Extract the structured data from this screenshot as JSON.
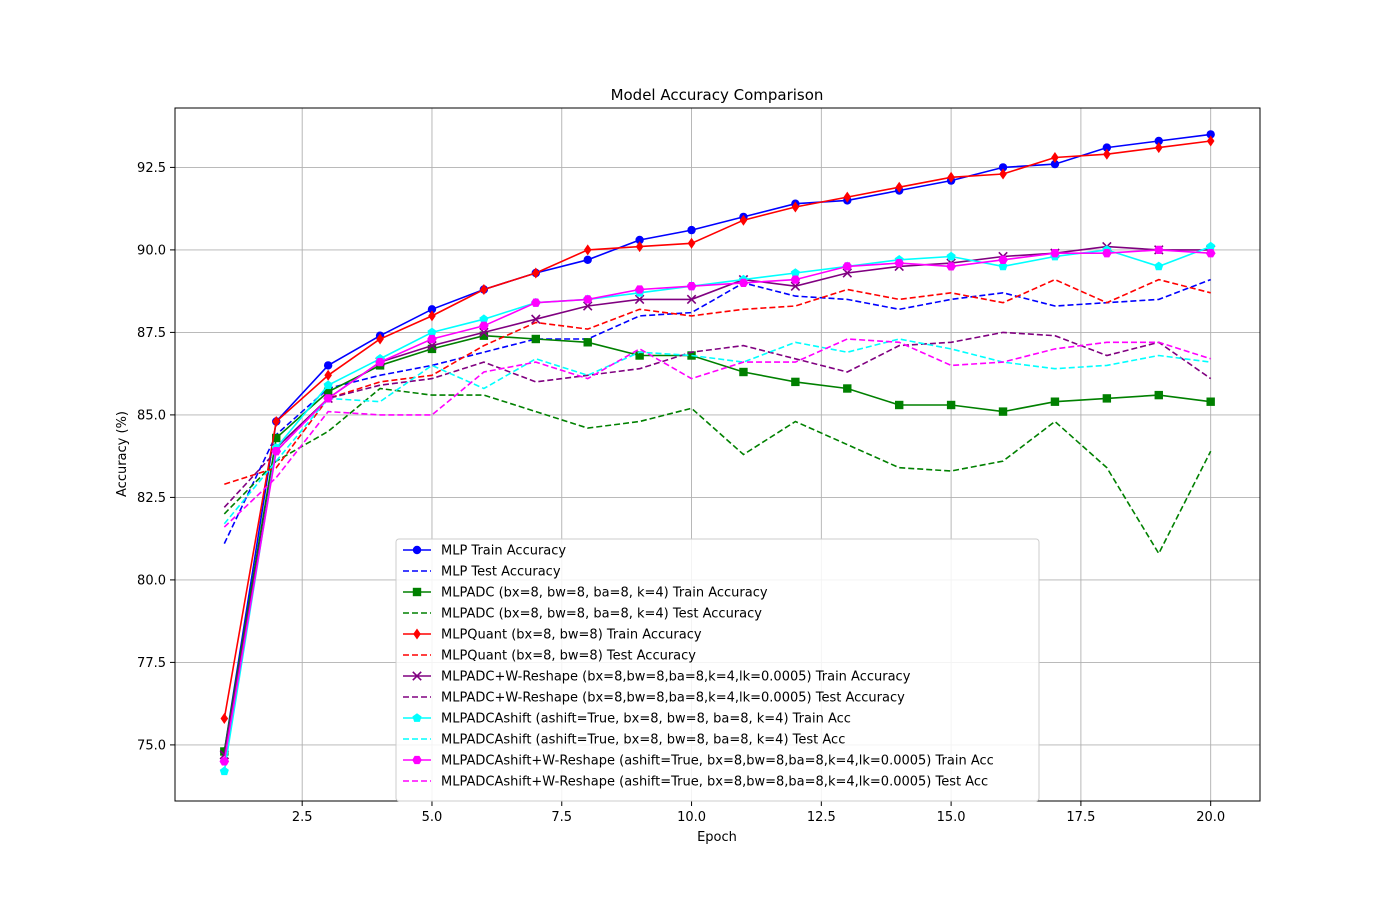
{
  "chart_data": {
    "type": "line",
    "title": "Model Accuracy Comparison",
    "xlabel": "Epoch",
    "ylabel": "Accuracy (%)",
    "xlim": [
      0.05,
      20.95
    ],
    "ylim": [
      73.3,
      94.3
    ],
    "x_ticks": [
      2.5,
      5.0,
      7.5,
      10.0,
      12.5,
      15.0,
      17.5,
      20.0
    ],
    "x_tick_labels": [
      "2.5",
      "5.0",
      "7.5",
      "10.0",
      "12.5",
      "15.0",
      "17.5",
      "20.0"
    ],
    "y_ticks": [
      75.0,
      77.5,
      80.0,
      82.5,
      85.0,
      87.5,
      90.0,
      92.5
    ],
    "y_tick_labels": [
      "75.0",
      "77.5",
      "80.0",
      "82.5",
      "85.0",
      "87.5",
      "90.0",
      "92.5"
    ],
    "grid": true,
    "legend_position": "lower-center",
    "x": [
      1,
      2,
      3,
      4,
      5,
      6,
      7,
      8,
      9,
      10,
      11,
      12,
      13,
      14,
      15,
      16,
      17,
      18,
      19,
      20
    ],
    "series": [
      {
        "name": "MLP Train Accuracy",
        "color": "#0000ff",
        "style": "solid",
        "marker": "circle",
        "values": [
          74.8,
          84.8,
          86.5,
          87.4,
          88.2,
          88.8,
          89.3,
          89.7,
          90.3,
          90.6,
          91.0,
          91.4,
          91.5,
          91.8,
          92.1,
          92.5,
          92.6,
          93.1,
          93.3,
          93.5
        ]
      },
      {
        "name": "MLP Test Accuracy",
        "color": "#0000ff",
        "style": "dashed",
        "marker": "none",
        "values": [
          81.1,
          84.4,
          85.8,
          86.2,
          86.5,
          86.9,
          87.3,
          87.3,
          88.0,
          88.1,
          89.0,
          88.6,
          88.5,
          88.2,
          88.5,
          88.7,
          88.3,
          88.4,
          88.5,
          89.1
        ]
      },
      {
        "name": "MLPADC (bx=8, bw=8, ba=8, k=4) Train Accuracy",
        "color": "#008000",
        "style": "solid",
        "marker": "square",
        "values": [
          74.8,
          84.3,
          85.7,
          86.5,
          87.0,
          87.4,
          87.3,
          87.2,
          86.8,
          86.8,
          86.3,
          86.0,
          85.8,
          85.3,
          85.3,
          85.1,
          85.4,
          85.5,
          85.6,
          85.4
        ]
      },
      {
        "name": "MLPADC (bx=8, bw=8, ba=8, k=4) Test Accuracy",
        "color": "#008000",
        "style": "dashed",
        "marker": "none",
        "values": [
          82.0,
          83.6,
          84.5,
          85.8,
          85.6,
          85.6,
          85.1,
          84.6,
          84.8,
          85.2,
          83.8,
          84.8,
          84.1,
          83.4,
          83.3,
          83.6,
          84.8,
          83.4,
          80.8,
          83.9
        ]
      },
      {
        "name": "MLPQuant (bx=8, bw=8) Train Accuracy",
        "color": "#ff0000",
        "style": "solid",
        "marker": "diamond",
        "values": [
          75.8,
          84.8,
          86.2,
          87.3,
          88.0,
          88.8,
          89.3,
          90.0,
          90.1,
          90.2,
          90.9,
          91.3,
          91.6,
          91.9,
          92.2,
          92.3,
          92.8,
          92.9,
          93.1,
          93.3
        ]
      },
      {
        "name": "MLPQuant (bx=8, bw=8) Test Accuracy",
        "color": "#ff0000",
        "style": "dashed",
        "marker": "none",
        "values": [
          82.9,
          83.4,
          85.5,
          86.0,
          86.2,
          87.1,
          87.8,
          87.6,
          88.2,
          88.0,
          88.2,
          88.3,
          88.8,
          88.5,
          88.7,
          88.4,
          89.1,
          88.4,
          89.1,
          88.7
        ]
      },
      {
        "name": "MLPADC+W-Reshape (bx=8,bw=8,ba=8,k=4,lk=0.0005) Train Accuracy",
        "color": "#800080",
        "style": "solid",
        "marker": "x",
        "values": [
          74.7,
          84.0,
          85.5,
          86.6,
          87.1,
          87.5,
          87.9,
          88.3,
          88.5,
          88.5,
          89.1,
          88.9,
          89.3,
          89.5,
          89.6,
          89.8,
          89.9,
          90.1,
          90.0,
          90.0
        ]
      },
      {
        "name": "MLPADC+W-Reshape (bx=8,bw=8,ba=8,k=4,lk=0.0005) Test Accuracy",
        "color": "#800080",
        "style": "dashed",
        "marker": "none",
        "values": [
          82.2,
          83.9,
          85.5,
          85.9,
          86.1,
          86.6,
          86.0,
          86.2,
          86.4,
          86.9,
          87.1,
          86.7,
          86.3,
          87.1,
          87.2,
          87.5,
          87.4,
          86.8,
          87.2,
          86.1
        ]
      },
      {
        "name": "MLPADCAshift (ashift=True, bx=8, bw=8, ba=8, k=4) Train Acc",
        "color": "#00ffff",
        "style": "solid",
        "marker": "pentagon",
        "values": [
          74.2,
          84.0,
          85.9,
          86.7,
          87.5,
          87.9,
          88.4,
          88.5,
          88.7,
          88.9,
          89.1,
          89.3,
          89.5,
          89.7,
          89.8,
          89.5,
          89.8,
          90.0,
          89.5,
          90.1
        ]
      },
      {
        "name": "MLPADCAshift (ashift=True, bx=8, bw=8, ba=8, k=4) Test Acc",
        "color": "#00ffff",
        "style": "dashed",
        "marker": "none",
        "values": [
          81.7,
          83.6,
          85.5,
          85.4,
          86.5,
          85.8,
          86.7,
          86.2,
          86.9,
          86.8,
          86.6,
          87.2,
          86.9,
          87.3,
          87.0,
          86.6,
          86.4,
          86.5,
          86.8,
          86.6
        ]
      },
      {
        "name": "MLPADCAshift+W-Reshape (ashift=True, bx=8,bw=8,ba=8,k=4,lk=0.0005) Train Acc",
        "color": "#ff00ff",
        "style": "solid",
        "marker": "hexagon",
        "values": [
          74.5,
          83.9,
          85.5,
          86.6,
          87.3,
          87.7,
          88.4,
          88.5,
          88.8,
          88.9,
          89.0,
          89.1,
          89.5,
          89.6,
          89.5,
          89.7,
          89.9,
          89.9,
          90.0,
          89.9
        ]
      },
      {
        "name": "MLPADCAshift+W-Reshape (ashift=True, bx=8,bw=8,ba=8,k=4,lk=0.0005) Test Acc",
        "color": "#ff00ff",
        "style": "dashed",
        "marker": "none",
        "values": [
          81.6,
          83.1,
          85.1,
          85.0,
          85.0,
          86.3,
          86.6,
          86.1,
          87.0,
          86.1,
          86.6,
          86.6,
          87.3,
          87.2,
          86.5,
          86.6,
          87.0,
          87.2,
          87.2,
          86.7
        ]
      }
    ]
  }
}
